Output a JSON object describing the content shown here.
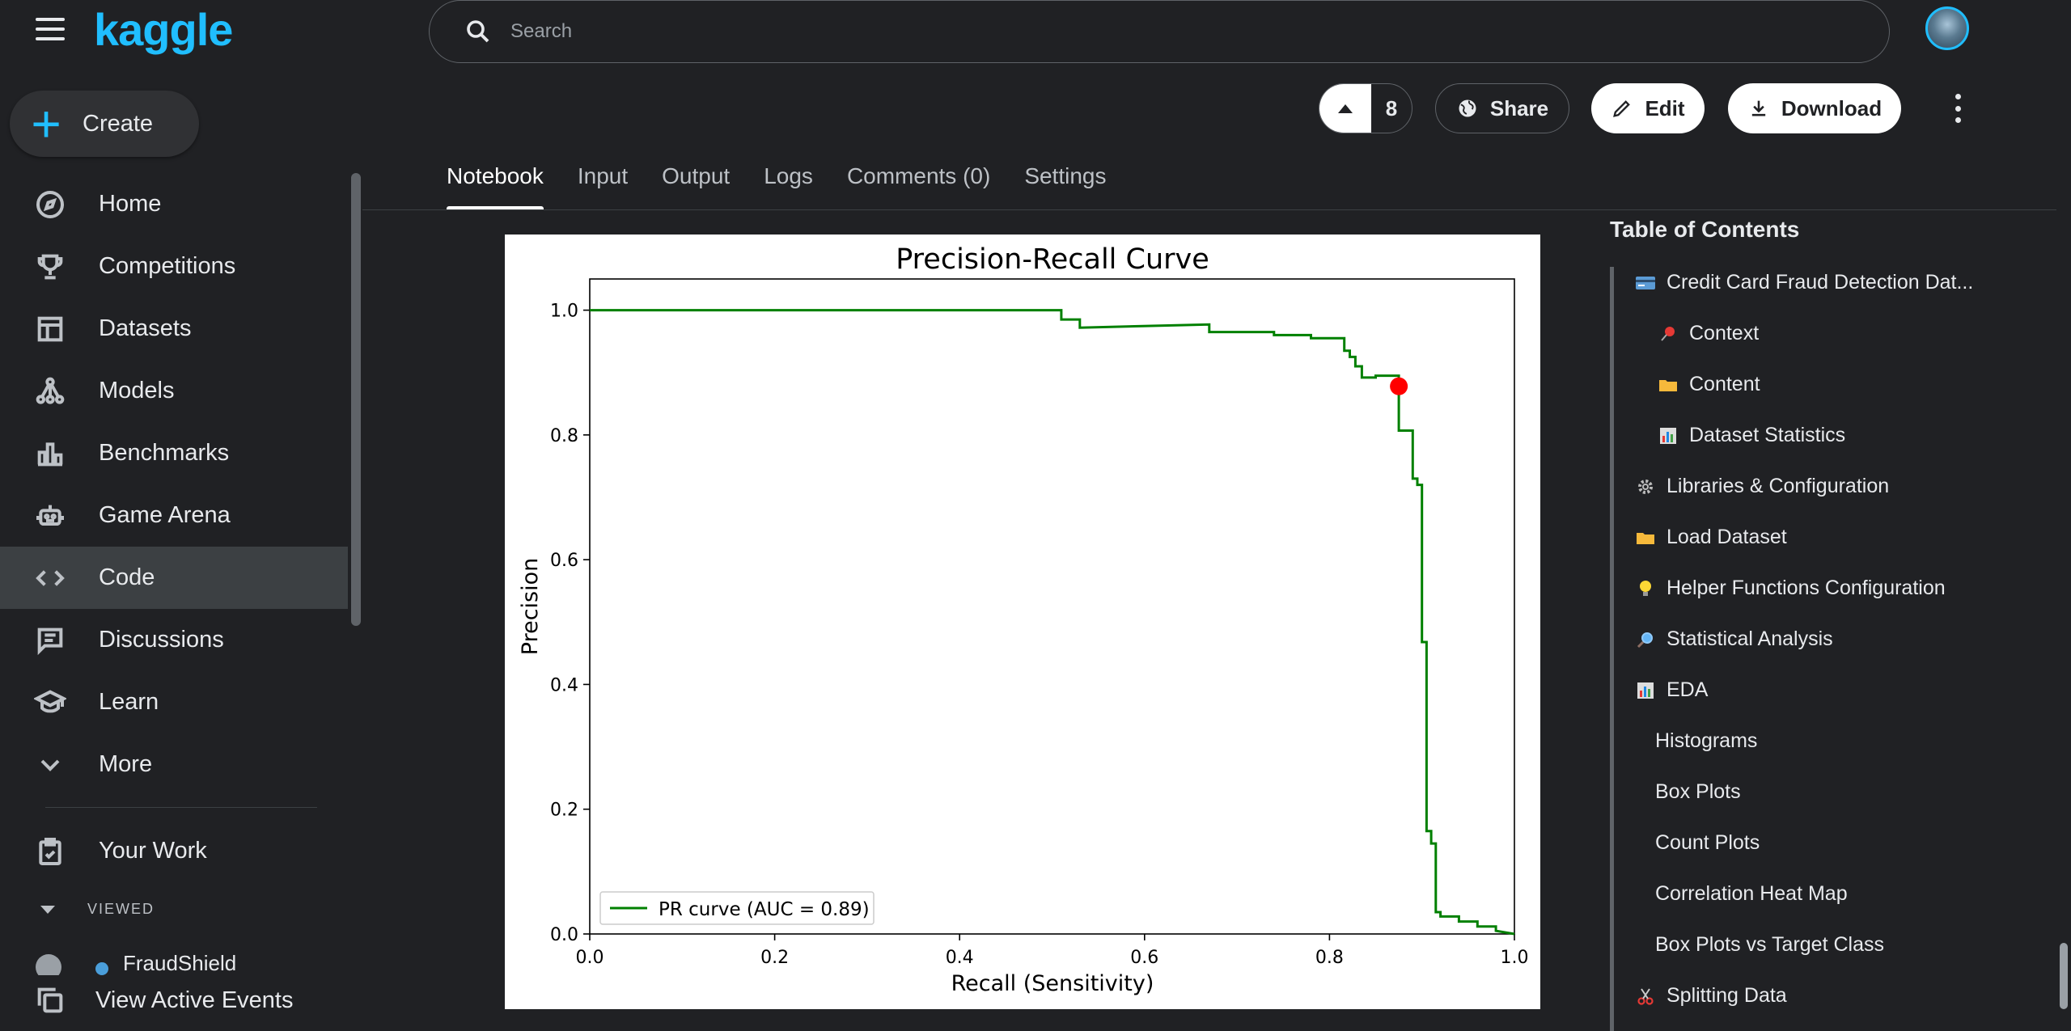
{
  "brand": {
    "logo": "kaggle"
  },
  "sidebar": {
    "create_label": "Create",
    "items": [
      {
        "label": "Home"
      },
      {
        "label": "Competitions"
      },
      {
        "label": "Datasets"
      },
      {
        "label": "Models"
      },
      {
        "label": "Benchmarks"
      },
      {
        "label": "Game Arena"
      },
      {
        "label": "Code"
      },
      {
        "label": "Discussions"
      },
      {
        "label": "Learn"
      },
      {
        "label": "More"
      }
    ],
    "your_work": "Your Work",
    "viewed_header": "VIEWED",
    "viewed_item": "FraudShield",
    "active_events": "View Active Events"
  },
  "search": {
    "placeholder": "Search"
  },
  "actions": {
    "vote_count": "8",
    "share": "Share",
    "edit": "Edit",
    "download": "Download"
  },
  "tabs": [
    {
      "label": "Notebook"
    },
    {
      "label": "Input"
    },
    {
      "label": "Output"
    },
    {
      "label": "Logs"
    },
    {
      "label": "Comments (0)"
    },
    {
      "label": "Settings"
    }
  ],
  "toc": {
    "title": "Table of Contents",
    "items": [
      {
        "label": "Credit Card Fraud Detection Dat...",
        "icon": "credit-card-icon"
      },
      {
        "label": "Context",
        "icon": "pushpin-icon"
      },
      {
        "label": "Content",
        "icon": "folder-icon"
      },
      {
        "label": "Dataset Statistics",
        "icon": "bar-chart-icon"
      },
      {
        "label": "Libraries & Configuration",
        "icon": "gear-icon"
      },
      {
        "label": "Load Dataset",
        "icon": "folder-icon"
      },
      {
        "label": "Helper Functions Configuration",
        "icon": "lightbulb-icon"
      },
      {
        "label": "Statistical Analysis",
        "icon": "magnifier-icon"
      },
      {
        "label": "EDA",
        "icon": "bar-chart-icon"
      },
      {
        "label": "Histograms"
      },
      {
        "label": "Box Plots"
      },
      {
        "label": "Count Plots"
      },
      {
        "label": "Correlation Heat Map"
      },
      {
        "label": "Box Plots vs Target Class"
      },
      {
        "label": "Splitting Data",
        "icon": "scissors-icon"
      }
    ]
  },
  "chart_data": {
    "type": "line",
    "title": "Precision-Recall Curve",
    "xlabel": "Recall (Sensitivity)",
    "ylabel": "Precision",
    "xlim": [
      0,
      1
    ],
    "ylim": [
      0,
      1.05
    ],
    "xticks": [
      "0.0",
      "0.2",
      "0.4",
      "0.6",
      "0.8",
      "1.0"
    ],
    "yticks": [
      "0.0",
      "0.2",
      "0.4",
      "0.6",
      "0.8",
      "1.0"
    ],
    "grid": false,
    "legend_position": "lower-left",
    "line_color": "#008000",
    "marker_color": "#ff0000",
    "series": [
      {
        "name": "PR curve (AUC = 0.89)",
        "x": [
          0.0,
          0.51,
          0.51,
          0.53,
          0.53,
          0.67,
          0.67,
          0.74,
          0.74,
          0.78,
          0.78,
          0.816,
          0.816,
          0.822,
          0.822,
          0.828,
          0.828,
          0.835,
          0.835,
          0.85,
          0.85,
          0.875,
          0.875,
          0.89,
          0.89,
          0.895,
          0.895,
          0.9,
          0.9,
          0.905,
          0.905,
          0.91,
          0.91,
          0.915,
          0.915,
          0.92,
          0.92,
          0.94,
          0.94,
          0.96,
          0.96,
          0.98,
          0.98,
          1.0
        ],
        "y": [
          1.0,
          1.0,
          0.985,
          0.985,
          0.972,
          0.977,
          0.965,
          0.965,
          0.96,
          0.96,
          0.955,
          0.955,
          0.935,
          0.935,
          0.925,
          0.925,
          0.91,
          0.91,
          0.892,
          0.892,
          0.895,
          0.895,
          0.807,
          0.807,
          0.73,
          0.73,
          0.72,
          0.72,
          0.468,
          0.468,
          0.165,
          0.165,
          0.145,
          0.145,
          0.035,
          0.035,
          0.028,
          0.028,
          0.02,
          0.02,
          0.012,
          0.012,
          0.005,
          0.0
        ]
      }
    ],
    "marker": {
      "x": 0.875,
      "y": 0.878
    }
  }
}
